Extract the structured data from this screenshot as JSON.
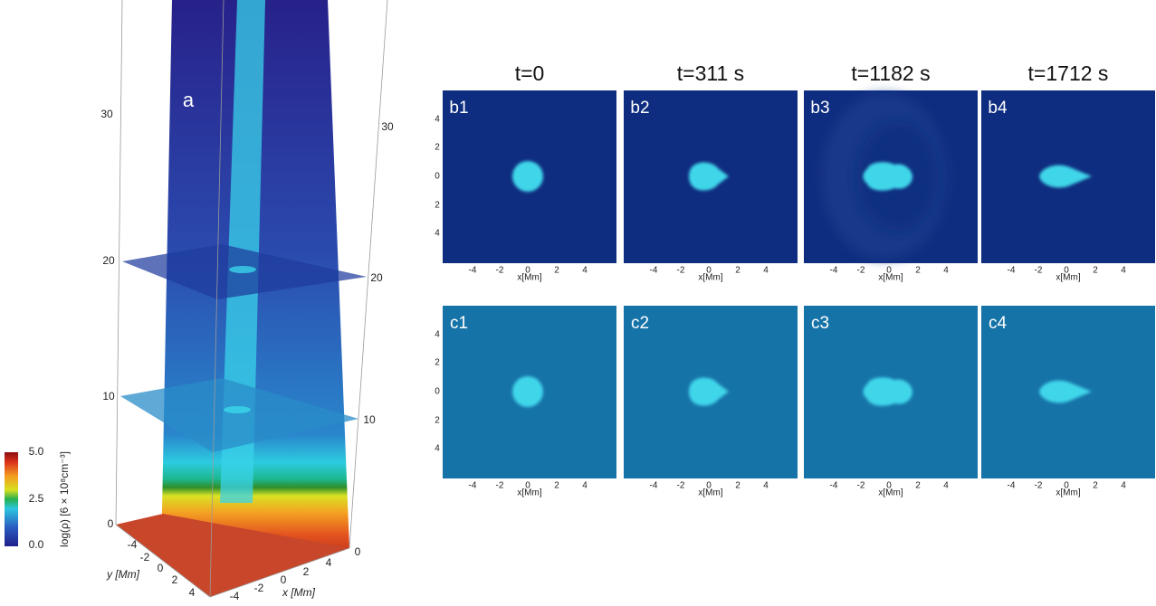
{
  "panel_a": {
    "label": "a",
    "z_ticks_left": [
      "30",
      "20",
      "10",
      "0"
    ],
    "z_ticks_right": [
      "30",
      "20",
      "10",
      "0"
    ],
    "y_ticks": [
      "-4",
      "-2",
      "0",
      "2",
      "4"
    ],
    "x_ticks": [
      "-4",
      "-2",
      "0",
      "2",
      "4"
    ],
    "y_label": "y [Mm]",
    "x_label": "x [Mm]"
  },
  "colorbar": {
    "label": "log(ρ) [6 × 10⁸cm⁻³]",
    "ticks": [
      "5.0",
      "2.5",
      "0.0"
    ]
  },
  "times": [
    "t=0",
    "t=311 s",
    "t=1182 s",
    "t=1712 s"
  ],
  "rows": [
    {
      "labels": [
        "b1",
        "b2",
        "b3",
        "b4"
      ]
    },
    {
      "labels": [
        "c1",
        "c2",
        "c3",
        "c4"
      ]
    }
  ],
  "panel_axes": {
    "y_ticks": [
      "4",
      "2",
      "0",
      "2",
      "4"
    ],
    "x_ticks": [
      "-4",
      "-2",
      "0",
      "2",
      "4"
    ],
    "x_label": "x[Mm]"
  }
}
